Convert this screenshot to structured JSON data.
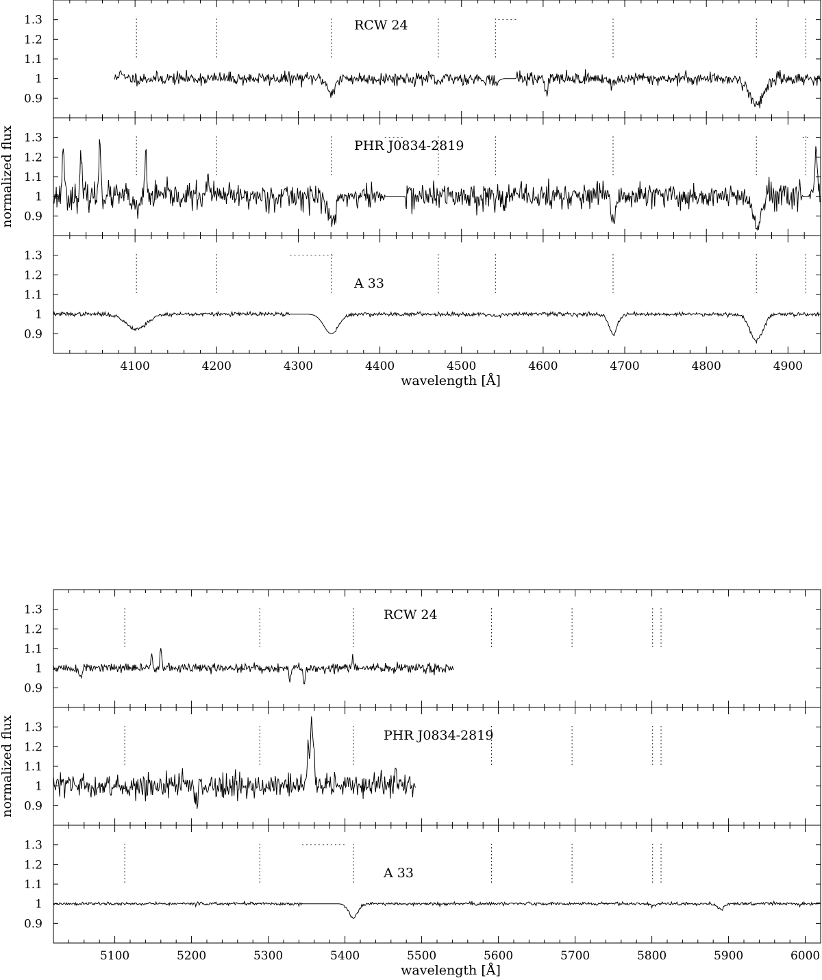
{
  "figures": [
    {
      "xlabel": "wavelength [Å]",
      "ylabel": "normalized flux"
    },
    {
      "xlabel": "wavelength [Å]",
      "ylabel": "normalized flux"
    }
  ],
  "chart_data": [
    {
      "type": "line",
      "xlabel": "wavelength [Å]",
      "ylabel": "normalized flux",
      "xlim": [
        4000,
        4940
      ],
      "ylim": [
        0.8,
        1.4
      ],
      "x_ticks": [
        4100,
        4200,
        4300,
        4400,
        4500,
        4600,
        4700,
        4800,
        4900
      ],
      "x_tick_labels": [
        "4100",
        "4200",
        "4300",
        "4400",
        "4500",
        "4600",
        "4700",
        "4800",
        "4900"
      ],
      "y_ticks": [
        0.9,
        1.0,
        1.1,
        1.2,
        1.3
      ],
      "y_tick_labels": [
        "0.9",
        "1",
        "1.1",
        "1.2",
        "1.3"
      ],
      "grid": false,
      "line_marks": [
        4101.7,
        4199.9,
        4340.5,
        4471.5,
        4541.6,
        4685.7,
        4861.3,
        4921.9
      ],
      "panels": [
        {
          "label": "RCW 24",
          "x_start": 4075,
          "x_end": 4940,
          "noise": 0.016,
          "seed": 11,
          "features": [
            {
              "center": 4340.5,
              "depth": 0.07,
              "width": 5
            },
            {
              "center": 4471.5,
              "depth": 0.02,
              "width": 4
            },
            {
              "center": 4541.6,
              "depth": 0.02,
              "width": 4
            },
            {
              "center": 4605,
              "depth": 0.04,
              "width": 1
            },
            {
              "center": 4685.7,
              "depth": 0.03,
              "width": 4
            },
            {
              "center": 4861.3,
              "depth": 0.13,
              "width": 9
            }
          ],
          "gaps": [
            [
              4545,
              4567
            ]
          ],
          "spikes": [
            {
              "x": 4082,
              "v": 0.06
            },
            {
              "x": 4604,
              "v": -0.05
            }
          ]
        },
        {
          "label": "PHR J0834-2819",
          "x_start": 4000,
          "x_end": 4940,
          "noise": 0.033,
          "seed": 23,
          "features": [
            {
              "center": 4101.7,
              "depth": 0.08,
              "width": 4
            },
            {
              "center": 4340.5,
              "depth": 0.13,
              "width": 5
            },
            {
              "center": 4685.7,
              "depth": 0.11,
              "width": 3
            },
            {
              "center": 4861.3,
              "depth": 0.14,
              "width": 6
            }
          ],
          "gaps": [
            [
              4406,
              4431
            ],
            [
              4918,
              4926
            ]
          ],
          "spikes": [
            {
              "x": 4012,
              "v": 0.28
            },
            {
              "x": 4034,
              "v": 0.19
            },
            {
              "x": 4057,
              "v": 0.3
            },
            {
              "x": 4113,
              "v": 0.22
            },
            {
              "x": 4190,
              "v": 0.13
            },
            {
              "x": 4934,
              "v": 0.24
            }
          ]
        },
        {
          "label": "A 33",
          "x_start": 4000,
          "x_end": 4940,
          "noise": 0.005,
          "seed": 37,
          "features": [
            {
              "center": 4101.7,
              "depth": 0.075,
              "width": 13
            },
            {
              "center": 4340.5,
              "depth": 0.1,
              "width": 9
            },
            {
              "center": 4541.6,
              "depth": 0.01,
              "width": 5
            },
            {
              "center": 4685.7,
              "depth": 0.105,
              "width": 5
            },
            {
              "center": 4861.3,
              "depth": 0.135,
              "width": 8
            }
          ],
          "gaps": [
            [
              4290,
              4345
            ]
          ],
          "spikes": []
        }
      ]
    },
    {
      "type": "line",
      "xlabel": "wavelength [Å]",
      "ylabel": "normalized flux",
      "xlim": [
        5020,
        6020
      ],
      "ylim": [
        0.8,
        1.4
      ],
      "x_ticks": [
        5100,
        5200,
        5300,
        5400,
        5500,
        5600,
        5700,
        5800,
        5900,
        6000
      ],
      "x_tick_labels": [
        "5100",
        "5200",
        "5300",
        "5400",
        "5500",
        "5600",
        "5700",
        "5800",
        "5900",
        "6000"
      ],
      "y_ticks": [
        0.9,
        1.0,
        1.1,
        1.2,
        1.3
      ],
      "y_tick_labels": [
        "0.9",
        "1",
        "1.1",
        "1.2",
        "1.3"
      ],
      "grid": false,
      "line_marks": [
        5113,
        5289,
        5411,
        5591,
        5696,
        5801,
        5812
      ],
      "panels": [
        {
          "label": "RCW 24",
          "x_start": 5020,
          "x_end": 5542,
          "noise": 0.012,
          "seed": 51,
          "features": [
            {
              "center": 5055,
              "depth": 0.05,
              "width": 2
            }
          ],
          "gaps": [],
          "spikes": [
            {
              "x": 5148,
              "v": 0.09
            },
            {
              "x": 5160,
              "v": 0.1
            },
            {
              "x": 5328,
              "v": -0.07
            },
            {
              "x": 5347,
              "v": -0.1
            },
            {
              "x": 5410,
              "v": 0.05
            }
          ]
        },
        {
          "label": "PHR J0834-2819",
          "x_start": 5020,
          "x_end": 5492,
          "noise": 0.03,
          "seed": 63,
          "features": [],
          "gaps": [],
          "spikes": [
            {
              "x": 5352,
              "v": 0.25
            },
            {
              "x": 5356,
              "v": 0.34
            },
            {
              "x": 5359,
              "v": 0.2
            },
            {
              "x": 5466,
              "v": 0.1
            },
            {
              "x": 5207,
              "v": -0.09
            }
          ]
        },
        {
          "label": "A 33",
          "x_start": 5020,
          "x_end": 6020,
          "noise": 0.004,
          "seed": 77,
          "features": [
            {
              "center": 5411,
              "depth": 0.07,
              "width": 6
            },
            {
              "center": 5801,
              "depth": 0.01,
              "width": 3
            },
            {
              "center": 5890,
              "depth": 0.03,
              "width": 4
            }
          ],
          "gaps": [
            [
              5344,
              5400
            ]
          ],
          "spikes": []
        }
      ]
    }
  ]
}
